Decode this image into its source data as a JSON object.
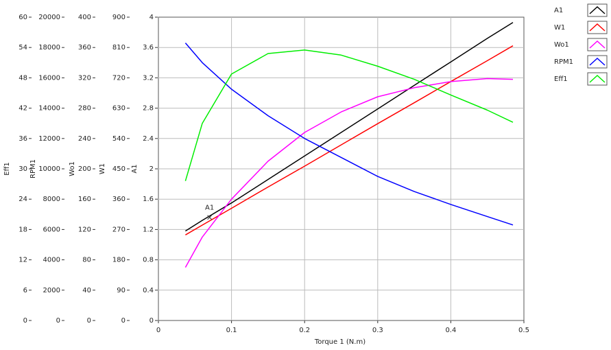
{
  "chart_data": {
    "type": "line",
    "x_label": "Torque 1 (N.m)",
    "x": [
      0.037,
      0.06,
      0.1,
      0.15,
      0.2,
      0.25,
      0.3,
      0.35,
      0.4,
      0.45,
      0.485
    ],
    "xlim": [
      0,
      0.5
    ],
    "xticks": [
      0,
      0.1,
      0.2,
      0.3,
      0.4,
      0.5
    ],
    "grid": true,
    "axes": [
      {
        "label": "Eff1",
        "ylim": [
          0,
          60
        ],
        "yticks": [
          0,
          6,
          12,
          18,
          24,
          30,
          36,
          42,
          48,
          54,
          60
        ]
      },
      {
        "label": "RPM1",
        "ylim": [
          0,
          20000
        ],
        "yticks": [
          0,
          2000,
          4000,
          6000,
          8000,
          10000,
          12000,
          14000,
          16000,
          18000,
          20000
        ]
      },
      {
        "label": "Wo1",
        "ylim": [
          0,
          400
        ],
        "yticks": [
          0,
          40,
          80,
          120,
          160,
          200,
          240,
          280,
          320,
          360,
          400
        ]
      },
      {
        "label": "W1",
        "ylim": [
          0,
          900
        ],
        "yticks": [
          0,
          90,
          180,
          270,
          360,
          450,
          540,
          630,
          720,
          810,
          900
        ]
      },
      {
        "label": "A1",
        "ylim": [
          0,
          4
        ],
        "yticks": [
          0,
          0.4,
          0.8,
          1.2,
          1.6,
          2,
          2.4,
          2.8,
          3.2,
          3.6,
          4
        ]
      }
    ],
    "series": [
      {
        "name": "A1",
        "color": "#000000",
        "axis": 4,
        "values": [
          1.18,
          1.32,
          1.55,
          1.86,
          2.17,
          2.48,
          2.79,
          3.1,
          3.41,
          3.72,
          3.93
        ]
      },
      {
        "name": "W1",
        "color": "#ff0000",
        "axis": 3,
        "values": [
          254,
          283,
          333,
          396,
          458,
          521,
          584,
          646,
          709,
          771,
          815
        ]
      },
      {
        "name": "Wo1",
        "color": "#ff00ff",
        "axis": 2,
        "values": [
          70,
          110,
          160,
          210,
          248,
          275,
          295,
          307,
          315,
          319,
          318
        ]
      },
      {
        "name": "RPM1",
        "color": "#0000ff",
        "axis": 1,
        "values": [
          18300,
          17000,
          15250,
          13500,
          12000,
          10750,
          9500,
          8500,
          7650,
          6850,
          6300
        ]
      },
      {
        "name": "Eff1",
        "color": "#00ee00",
        "axis": 0,
        "values": [
          27.6,
          39,
          48.75,
          52.8,
          53.5,
          52.5,
          50.3,
          47.7,
          44.6,
          41.6,
          39.2
        ]
      }
    ],
    "annotation": {
      "text": "A1",
      "x": 0.07,
      "y": 1.36,
      "axis": 4
    }
  }
}
